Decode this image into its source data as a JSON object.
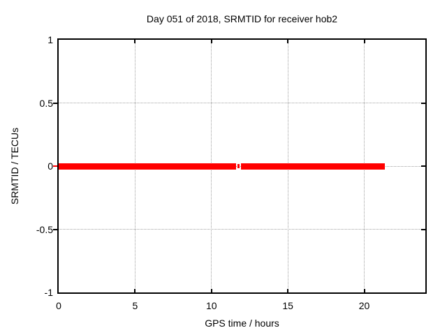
{
  "chart_data": {
    "type": "line",
    "title": "Day 051 of 2018, SRMTID for receiver hob2",
    "xlabel": "GPS time / hours",
    "ylabel": "SRMTID / TECUs",
    "xlim": [
      0,
      24
    ],
    "ylim": [
      -1,
      1
    ],
    "x_ticks": [
      0,
      5,
      10,
      15,
      20
    ],
    "x_tick_labels": [
      "0",
      "5",
      "10",
      "15",
      "20"
    ],
    "y_ticks": [
      1,
      0.5,
      0,
      -0.5,
      -1
    ],
    "y_tick_labels": [
      "1",
      "0.5",
      "0",
      "-0.5",
      "-1"
    ],
    "grid": true,
    "legend": "none",
    "series": [
      {
        "name": "SRMTID",
        "color": "#ff0000",
        "y_value": 0,
        "segments": [
          {
            "x1": 0.0,
            "x2": 11.61,
            "weight": "thick"
          },
          {
            "x1": 11.68,
            "x2": 11.84,
            "weight": "thin"
          },
          {
            "x1": 11.94,
            "x2": 21.35,
            "weight": "thick"
          }
        ]
      }
    ],
    "colors": {
      "line": "#ff0000",
      "grid": "#a0a0a0",
      "border": "#000000",
      "background": "#ffffff",
      "zero_tick_left": "#ff0000"
    }
  }
}
